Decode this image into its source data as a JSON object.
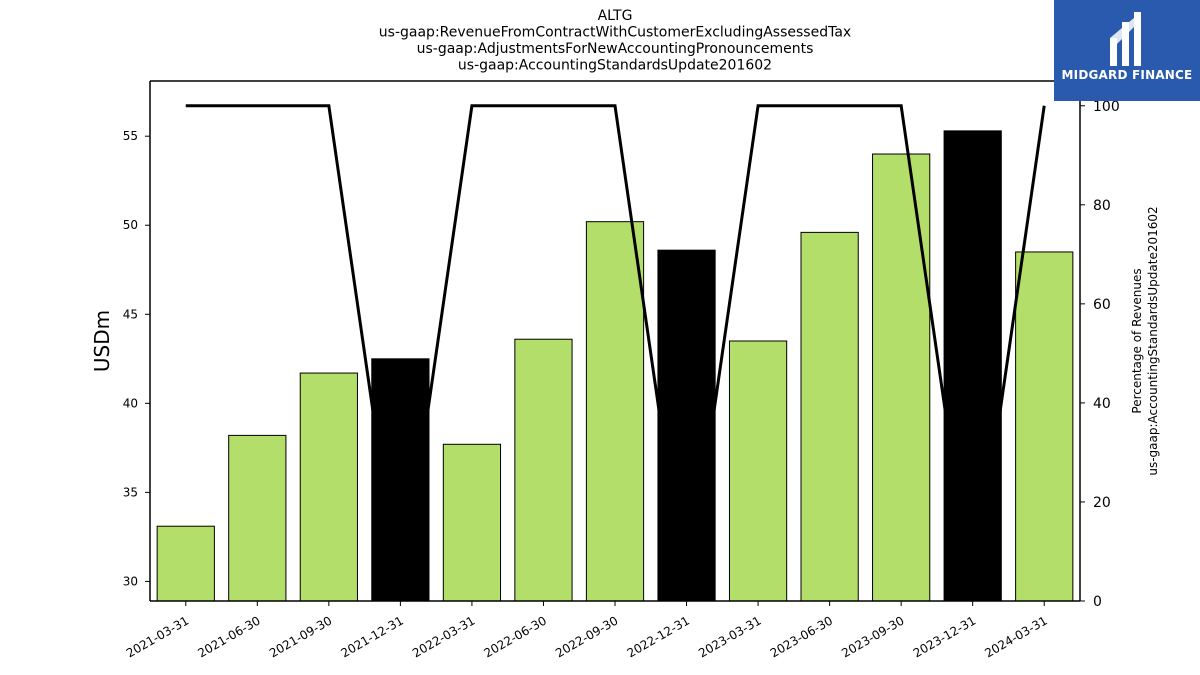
{
  "chart_data": {
    "type": "bar",
    "title_lines": [
      "ALTG",
      "us-gaap:RevenueFromContractWithCustomerExcludingAssessedTax",
      "us-gaap:AdjustmentsForNewAccountingPronouncements",
      "us-gaap:AccountingStandardsUpdate201602"
    ],
    "categories": [
      "2021-03-31",
      "2021-06-30",
      "2021-09-30",
      "2021-12-31",
      "2022-03-31",
      "2022-06-30",
      "2022-09-30",
      "2022-12-31",
      "2023-03-31",
      "2023-06-30",
      "2023-09-30",
      "2023-12-31",
      "2024-03-31"
    ],
    "values": [
      33.1,
      38.2,
      41.7,
      42.5,
      37.7,
      43.6,
      50.2,
      48.6,
      43.5,
      49.6,
      54.0,
      55.3,
      48.5
    ],
    "bar_colors": [
      "#b3de69",
      "#b3de69",
      "#b3de69",
      "#000000",
      "#b3de69",
      "#b3de69",
      "#b3de69",
      "#000000",
      "#b3de69",
      "#b3de69",
      "#b3de69",
      "#000000",
      "#b3de69"
    ],
    "line_values": [
      100,
      100,
      100,
      0,
      100,
      100,
      100,
      0,
      100,
      100,
      100,
      0,
      100
    ],
    "line_color": "#000000",
    "ylabel": "USDm",
    "ylim": [
      28.9,
      58.1
    ],
    "yticks": [
      30,
      35,
      40,
      45,
      50,
      55
    ],
    "ylabel_right_lines": [
      "Percentage of Revenues",
      "us-gaap:AccountingStandardsUpdate201602"
    ],
    "ylim_right": [
      0,
      105
    ],
    "yticks_right": [
      0,
      20,
      40,
      60,
      80,
      100
    ],
    "grid": false
  },
  "logo": {
    "text": "MIDGARD FINANCE",
    "background": "#2a5aad"
  }
}
